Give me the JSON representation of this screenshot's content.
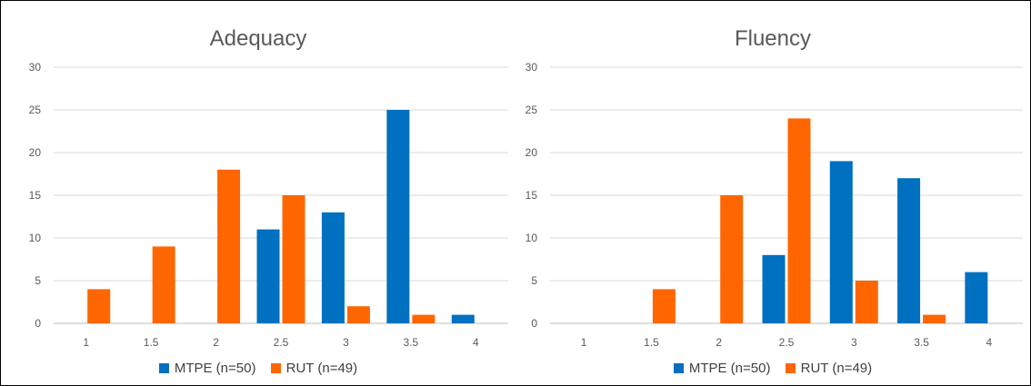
{
  "chart_data": [
    {
      "type": "bar",
      "title": "Adequacy",
      "categories": [
        "1",
        "1.5",
        "2",
        "2.5",
        "3",
        "3.5",
        "4"
      ],
      "yticks": [
        "0",
        "5",
        "10",
        "15",
        "20",
        "25",
        "30"
      ],
      "ylim": [
        0,
        30
      ],
      "grid": true,
      "legend_position": "bottom",
      "series": [
        {
          "name": "MTPE (n=50)",
          "color": "#0070C0",
          "values": [
            0,
            0,
            0,
            11,
            13,
            25,
            1
          ]
        },
        {
          "name": "RUT (n=49)",
          "color": "#FF6600",
          "values": [
            4,
            9,
            18,
            15,
            2,
            1,
            0
          ]
        }
      ]
    },
    {
      "type": "bar",
      "title": "Fluency",
      "categories": [
        "1",
        "1.5",
        "2",
        "2.5",
        "3",
        "3.5",
        "4"
      ],
      "yticks": [
        "0",
        "5",
        "10",
        "15",
        "20",
        "25",
        "30"
      ],
      "ylim": [
        0,
        30
      ],
      "grid": true,
      "legend_position": "bottom",
      "series": [
        {
          "name": "MTPE (n=50)",
          "color": "#0070C0",
          "values": [
            0,
            0,
            0,
            8,
            19,
            17,
            6
          ]
        },
        {
          "name": "RUT (n=49)",
          "color": "#FF6600",
          "values": [
            0,
            4,
            15,
            24,
            5,
            1,
            0
          ]
        }
      ]
    }
  ]
}
